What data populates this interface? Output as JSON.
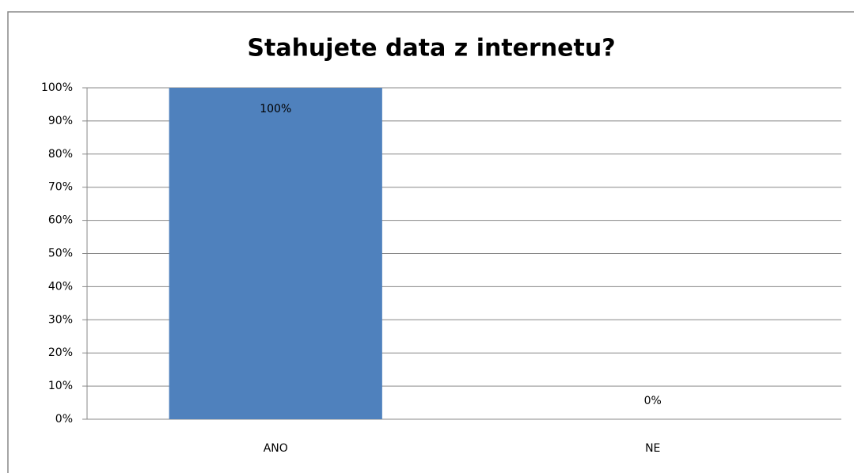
{
  "chart_data": {
    "type": "bar",
    "title": "Stahujete data z internetu?",
    "categories": [
      "ANO",
      "NE"
    ],
    "values": [
      100,
      0
    ],
    "value_labels": [
      "100%",
      "0%"
    ],
    "color": "#4f81bd",
    "ylim": [
      0,
      100
    ],
    "yticks": [
      {
        "value": 0,
        "label": "0%"
      },
      {
        "value": 10,
        "label": "10%"
      },
      {
        "value": 20,
        "label": "20%"
      },
      {
        "value": 30,
        "label": "30%"
      },
      {
        "value": 40,
        "label": "40%"
      },
      {
        "value": 50,
        "label": "50%"
      },
      {
        "value": 60,
        "label": "60%"
      },
      {
        "value": 70,
        "label": "70%"
      },
      {
        "value": 80,
        "label": "80%"
      },
      {
        "value": 90,
        "label": "90%"
      },
      {
        "value": 100,
        "label": "100%"
      }
    ],
    "grid": true
  }
}
